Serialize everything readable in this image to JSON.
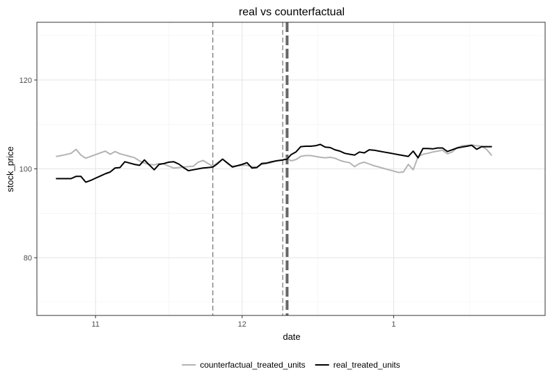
{
  "chart_data": {
    "type": "line",
    "title": "real vs counterfactual",
    "xlabel": "date",
    "ylabel": "stock_price",
    "x_ticks": [
      {
        "label": "11",
        "value": 8
      },
      {
        "label": "12",
        "value": 38
      },
      {
        "label": "1",
        "value": 69
      }
    ],
    "xlim": [
      -4,
      100
    ],
    "ylim": [
      67,
      133
    ],
    "y_ticks": [
      80,
      100,
      120
    ],
    "grid": true,
    "legend_position": "bottom",
    "vlines": [
      {
        "x": 32,
        "style": "dashed-thin"
      },
      {
        "x": 46.3,
        "style": "dashed-thin"
      },
      {
        "x": 47.2,
        "style": "dashed-thick"
      }
    ],
    "series": [
      {
        "name": "counterfactual_treated_units",
        "color": "#b3b3b3",
        "points": [
          [
            0,
            102.8
          ],
          [
            1.5,
            103.1
          ],
          [
            3,
            103.5
          ],
          [
            4,
            104.4
          ],
          [
            5,
            103.1
          ],
          [
            6,
            102.4
          ],
          [
            7,
            102.8
          ],
          [
            8,
            103.2
          ],
          [
            9,
            103.6
          ],
          [
            10,
            104
          ],
          [
            11,
            103.3
          ],
          [
            12,
            103.9
          ],
          [
            13,
            103.4
          ],
          [
            14,
            103.1
          ],
          [
            15,
            102.8
          ],
          [
            16,
            102.5
          ],
          [
            17,
            101.8
          ],
          [
            18,
            101.3
          ],
          [
            19,
            101
          ],
          [
            20,
            100.9
          ],
          [
            21,
            101.2
          ],
          [
            22,
            101.1
          ],
          [
            23,
            100.6
          ],
          [
            24,
            100.2
          ],
          [
            25,
            100.3
          ],
          [
            26,
            100.4
          ],
          [
            27,
            100.5
          ],
          [
            28,
            100.6
          ],
          [
            29,
            101.5
          ],
          [
            30,
            101.9
          ],
          [
            31,
            101.2
          ],
          [
            32,
            100.6
          ],
          [
            33,
            101.4
          ],
          [
            34,
            102.2
          ],
          [
            35,
            101.2
          ],
          [
            36,
            100.6
          ],
          [
            37,
            100.7
          ],
          [
            38,
            100.8
          ],
          [
            39,
            100.8
          ],
          [
            40,
            100.5
          ],
          [
            41,
            100.4
          ],
          [
            42,
            101
          ],
          [
            43,
            101.2
          ],
          [
            44,
            101.4
          ],
          [
            45,
            101.8
          ],
          [
            46.3,
            102
          ],
          [
            47.2,
            102.4
          ],
          [
            48,
            101.8
          ],
          [
            49,
            102.1
          ],
          [
            50,
            102.8
          ],
          [
            51,
            103
          ],
          [
            52,
            103
          ],
          [
            53,
            102.8
          ],
          [
            54,
            102.6
          ],
          [
            55,
            102.5
          ],
          [
            56,
            102.6
          ],
          [
            57,
            102.4
          ],
          [
            58,
            101.9
          ],
          [
            59,
            101.6
          ],
          [
            60,
            101.4
          ],
          [
            61,
            100.5
          ],
          [
            62,
            101.2
          ],
          [
            63,
            101.5
          ],
          [
            64,
            101.1
          ],
          [
            65,
            100.7
          ],
          [
            66,
            100.4
          ],
          [
            67,
            100.1
          ],
          [
            68,
            99.8
          ],
          [
            69,
            99.5
          ],
          [
            70,
            99.2
          ],
          [
            71,
            99.3
          ],
          [
            72,
            101
          ],
          [
            73,
            99.8
          ],
          [
            74,
            102.7
          ],
          [
            75,
            103.3
          ],
          [
            76,
            103.5
          ],
          [
            77,
            103.8
          ],
          [
            78,
            104
          ],
          [
            79,
            104.2
          ],
          [
            80,
            103.4
          ],
          [
            81,
            103.8
          ],
          [
            82,
            104.8
          ],
          [
            83,
            105.2
          ],
          [
            84,
            105.3
          ],
          [
            85,
            105.4
          ],
          [
            86,
            105.2
          ],
          [
            87,
            105.1
          ],
          [
            88,
            104.4
          ],
          [
            89,
            103.1
          ]
        ]
      },
      {
        "name": "real_treated_units",
        "color": "#000000",
        "points": [
          [
            0,
            97.8
          ],
          [
            1,
            97.8
          ],
          [
            2,
            97.8
          ],
          [
            3,
            97.8
          ],
          [
            4,
            98.3
          ],
          [
            5,
            98.3
          ],
          [
            6,
            97
          ],
          [
            7,
            97.4
          ],
          [
            8,
            97.9
          ],
          [
            9,
            98.4
          ],
          [
            10,
            98.9
          ],
          [
            11,
            99.3
          ],
          [
            12,
            100.2
          ],
          [
            13,
            100.3
          ],
          [
            14,
            101.6
          ],
          [
            15,
            101.3
          ],
          [
            16,
            101
          ],
          [
            17,
            100.8
          ],
          [
            18,
            102
          ],
          [
            19,
            100.9
          ],
          [
            20,
            99.8
          ],
          [
            21,
            101
          ],
          [
            22,
            101.2
          ],
          [
            23,
            101.5
          ],
          [
            24,
            101.6
          ],
          [
            25,
            101.1
          ],
          [
            26,
            100.3
          ],
          [
            27,
            99.6
          ],
          [
            28,
            99.8
          ],
          [
            29,
            100
          ],
          [
            30,
            100.2
          ],
          [
            31,
            100.3
          ],
          [
            32,
            100.4
          ],
          [
            33,
            101.2
          ],
          [
            34,
            102.2
          ],
          [
            35,
            101.3
          ],
          [
            36,
            100.4
          ],
          [
            37,
            100.7
          ],
          [
            38,
            101
          ],
          [
            39,
            101.4
          ],
          [
            40,
            100.2
          ],
          [
            41,
            100.3
          ],
          [
            42,
            101.2
          ],
          [
            43,
            101.3
          ],
          [
            44,
            101.6
          ],
          [
            45,
            101.8
          ],
          [
            46.3,
            102
          ],
          [
            47.2,
            102.2
          ],
          [
            48,
            103.2
          ],
          [
            49,
            103.8
          ],
          [
            50,
            105
          ],
          [
            51,
            105.1
          ],
          [
            52,
            105.1
          ],
          [
            53,
            105.2
          ],
          [
            54,
            105.5
          ],
          [
            55,
            104.9
          ],
          [
            56,
            104.8
          ],
          [
            57,
            104.3
          ],
          [
            58,
            104
          ],
          [
            59,
            103.5
          ],
          [
            60,
            103.3
          ],
          [
            61,
            103.1
          ],
          [
            62,
            103.8
          ],
          [
            63,
            103.6
          ],
          [
            64,
            104.3
          ],
          [
            65,
            104.2
          ],
          [
            66,
            104
          ],
          [
            67,
            103.8
          ],
          [
            68,
            103.6
          ],
          [
            69,
            103.4
          ],
          [
            70,
            103.2
          ],
          [
            71,
            103
          ],
          [
            72,
            102.8
          ],
          [
            73,
            104
          ],
          [
            74,
            102.5
          ],
          [
            75,
            104.6
          ],
          [
            76,
            104.6
          ],
          [
            77,
            104.5
          ],
          [
            78,
            104.7
          ],
          [
            79,
            104.7
          ],
          [
            80,
            103.9
          ],
          [
            81,
            104.3
          ],
          [
            82,
            104.7
          ],
          [
            83,
            104.9
          ],
          [
            84,
            105.1
          ],
          [
            85,
            105.3
          ],
          [
            86,
            104.4
          ],
          [
            87,
            105
          ],
          [
            88,
            105
          ],
          [
            89,
            105
          ]
        ]
      }
    ]
  }
}
